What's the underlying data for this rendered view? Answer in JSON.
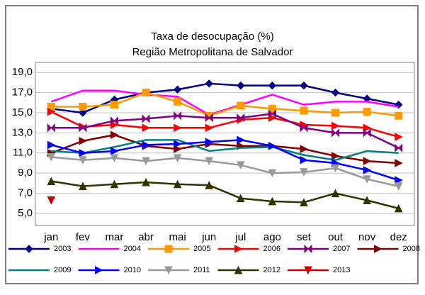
{
  "chart_data": {
    "type": "line",
    "title": "Taxa de desocupação (%)",
    "subtitle": "Região Metropolitana de Salvador",
    "categories": [
      "jan",
      "fev",
      "mar",
      "abr",
      "mai",
      "jun",
      "jul",
      "ago",
      "set",
      "out",
      "nov",
      "dez"
    ],
    "ylim": [
      3.8,
      20
    ],
    "yticks": [
      {
        "value": 5,
        "label": "5,0"
      },
      {
        "value": 7,
        "label": "7,0"
      },
      {
        "value": 9,
        "label": "9,0"
      },
      {
        "value": 11,
        "label": "11,0"
      },
      {
        "value": 13,
        "label": "13,0"
      },
      {
        "value": 15,
        "label": "15,0"
      },
      {
        "value": 17,
        "label": "17,0"
      },
      {
        "value": 19,
        "label": "19,0"
      }
    ],
    "grid": true,
    "legend": "bottom",
    "series": [
      {
        "name": "2003",
        "color": "#000080",
        "marker": "diamond",
        "values": [
          15.4,
          15.0,
          16.3,
          17.0,
          17.3,
          17.9,
          17.7,
          17.7,
          17.7,
          17.0,
          16.4,
          15.8
        ]
      },
      {
        "name": "2004",
        "color": "#ff00ff",
        "marker": "none",
        "values": [
          16.1,
          17.2,
          17.2,
          16.8,
          16.6,
          14.8,
          15.8,
          16.8,
          15.8,
          16.1,
          16.1,
          15.6
        ]
      },
      {
        "name": "2005",
        "color": "#ff9900",
        "marker": "square",
        "values": [
          15.6,
          15.6,
          15.8,
          17.0,
          16.1,
          14.7,
          15.7,
          15.4,
          15.2,
          15.0,
          15.1,
          14.7
        ]
      },
      {
        "name": "2006",
        "color": "#ff0000",
        "marker": "triangle-right",
        "values": [
          15.1,
          13.6,
          13.8,
          13.5,
          13.5,
          13.5,
          14.3,
          14.5,
          13.8,
          13.7,
          13.5,
          12.6
        ]
      },
      {
        "name": "2007",
        "color": "#800080",
        "marker": "bowtie",
        "values": [
          13.5,
          13.5,
          14.2,
          14.4,
          14.7,
          14.5,
          14.5,
          14.9,
          13.5,
          13.0,
          13.0,
          11.5
        ]
      },
      {
        "name": "2008",
        "color": "#800000",
        "marker": "triangle-right",
        "values": [
          11.0,
          12.2,
          12.8,
          11.7,
          11.4,
          11.9,
          11.7,
          11.7,
          11.4,
          10.7,
          10.2,
          10.0
        ]
      },
      {
        "name": "2009",
        "color": "#008080",
        "marker": "none",
        "values": [
          11.2,
          11.0,
          11.6,
          12.3,
          12.3,
          11.2,
          11.5,
          11.6,
          10.8,
          10.3,
          11.2,
          11.0
        ]
      },
      {
        "name": "2010",
        "color": "#0000ff",
        "marker": "triangle-right",
        "values": [
          11.8,
          11.0,
          11.2,
          11.8,
          11.9,
          12.1,
          12.3,
          11.7,
          10.3,
          10.0,
          9.3,
          8.3
        ]
      },
      {
        "name": "2011",
        "color": "#999999",
        "marker": "triangle-down",
        "values": [
          10.6,
          10.3,
          10.5,
          10.2,
          10.5,
          10.2,
          9.8,
          9.0,
          9.1,
          9.5,
          8.4,
          7.7
        ]
      },
      {
        "name": "2012",
        "color": "#333300",
        "marker": "triangle-up",
        "values": [
          8.2,
          7.7,
          7.9,
          8.1,
          7.9,
          7.8,
          6.5,
          6.2,
          6.1,
          7.0,
          6.3,
          5.5
        ]
      },
      {
        "name": "2013",
        "color": "#cc0000",
        "marker": "triangle-down",
        "values": [
          6.3,
          null,
          null,
          null,
          null,
          null,
          null,
          null,
          null,
          null,
          null,
          null
        ]
      }
    ]
  }
}
